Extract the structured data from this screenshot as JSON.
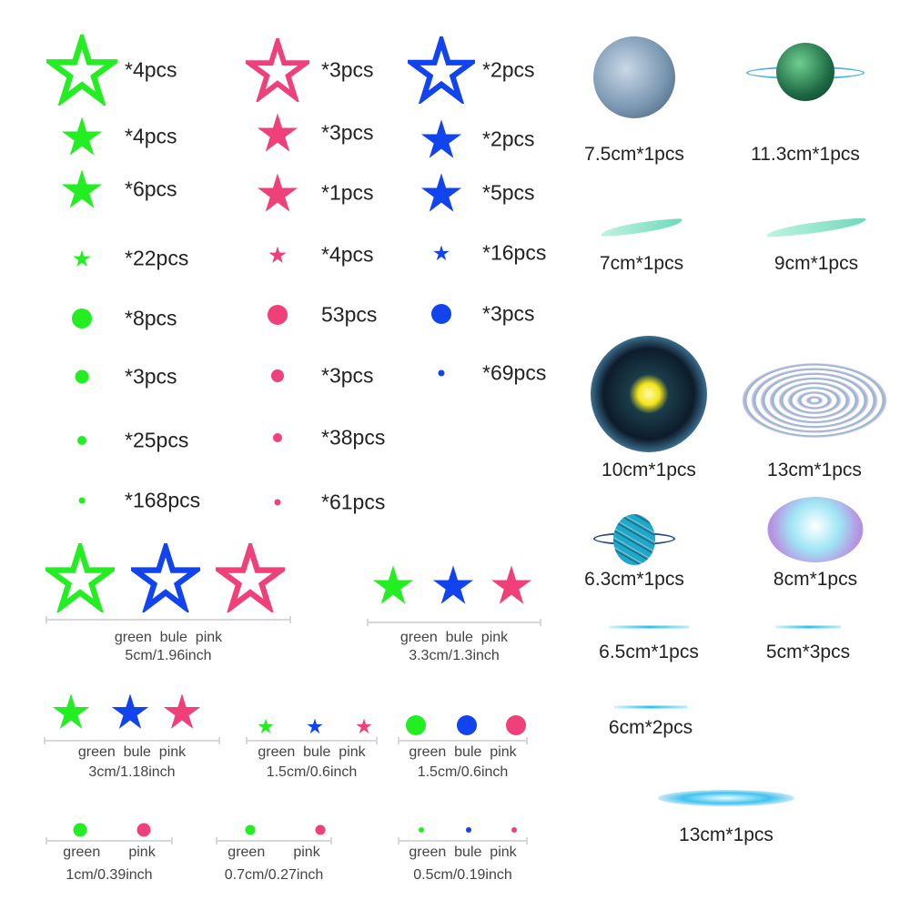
{
  "colors": {
    "green": "#22ee22",
    "pink": "#f0407a",
    "blue": "#1144ee"
  },
  "columns": [
    {
      "color": "green",
      "items": [
        {
          "shape": "star-outline",
          "text": "*4pcs"
        },
        {
          "shape": "star",
          "text": "*4pcs"
        },
        {
          "shape": "star",
          "text": "*6pcs"
        },
        {
          "shape": "star-small",
          "text": "*22pcs"
        },
        {
          "shape": "dot",
          "text": "*8pcs"
        },
        {
          "shape": "dot",
          "text": "*3pcs"
        },
        {
          "shape": "dot",
          "text": "*25pcs"
        },
        {
          "shape": "dot",
          "text": "*168pcs"
        }
      ]
    },
    {
      "color": "pink",
      "items": [
        {
          "shape": "star-outline",
          "text": "*3pcs"
        },
        {
          "shape": "star",
          "text": "*3pcs"
        },
        {
          "shape": "star",
          "text": "*1pcs"
        },
        {
          "shape": "star-small",
          "text": "*4pcs"
        },
        {
          "shape": "dot",
          "text": "53pcs"
        },
        {
          "shape": "dot",
          "text": "*3pcs"
        },
        {
          "shape": "dot",
          "text": "*38pcs"
        },
        {
          "shape": "dot",
          "text": "*61pcs"
        }
      ]
    },
    {
      "color": "blue",
      "items": [
        {
          "shape": "star-outline",
          "text": "*2pcs"
        },
        {
          "shape": "star",
          "text": "*2pcs"
        },
        {
          "shape": "star",
          "text": "*5pcs"
        },
        {
          "shape": "star-small",
          "text": "*16pcs"
        },
        {
          "shape": "dot",
          "text": "*3pcs"
        },
        {
          "shape": "dot",
          "text": "*69pcs"
        }
      ]
    }
  ],
  "size_groups": [
    {
      "colors": [
        "green",
        "blue",
        "pink"
      ],
      "shape": "star-outline",
      "labels": "green  bule  pink",
      "size": "5cm/1.96inch"
    },
    {
      "colors": [
        "green",
        "blue",
        "pink"
      ],
      "shape": "star",
      "labels": "green  bule  pink",
      "size": "3.3cm/1.3inch"
    },
    {
      "colors": [
        "green",
        "blue",
        "pink"
      ],
      "shape": "star",
      "labels": "green  bule  pink",
      "size": "3cm/1.18inch"
    },
    {
      "colors": [
        "green",
        "blue",
        "pink"
      ],
      "shape": "star",
      "labels": "green  bule  pink",
      "size": "1.5cm/0.6inch"
    },
    {
      "colors": [
        "green",
        "blue",
        "pink"
      ],
      "shape": "dot",
      "labels": "green  bule  pink",
      "size": "1.5cm/0.6inch"
    },
    {
      "colors": [
        "green",
        "pink"
      ],
      "shape": "dot",
      "labels": "green       pink",
      "size": "1cm/0.39inch"
    },
    {
      "colors": [
        "green",
        "pink"
      ],
      "shape": "dot",
      "labels": "green       pink",
      "size": "0.7cm/0.27inch"
    },
    {
      "colors": [
        "green",
        "blue",
        "pink"
      ],
      "shape": "dot",
      "labels": "green  bule  pink",
      "size": "0.5cm/0.19inch"
    }
  ],
  "decals": [
    {
      "kind": "moon",
      "text": "7.5cm*1pcs"
    },
    {
      "kind": "ringed-green-planet",
      "text": "11.3cm*1pcs"
    },
    {
      "kind": "feather",
      "text": "7cm*1pcs"
    },
    {
      "kind": "feather",
      "text": "9cm*1pcs"
    },
    {
      "kind": "sun-nebula",
      "text": "10cm*1pcs"
    },
    {
      "kind": "spiral-galaxy",
      "text": "13cm*1pcs"
    },
    {
      "kind": "saturn",
      "text": "6.3cm*1pcs"
    },
    {
      "kind": "galaxy-oval",
      "text": "8cm*1pcs"
    },
    {
      "kind": "meteor-line",
      "text": "6.5cm*1pcs"
    },
    {
      "kind": "meteor-line",
      "text": "5cm*3pcs"
    },
    {
      "kind": "meteor-line",
      "text": "6cm*2pcs"
    },
    {
      "kind": "meteor-streak",
      "text": "13cm*1pcs"
    }
  ]
}
